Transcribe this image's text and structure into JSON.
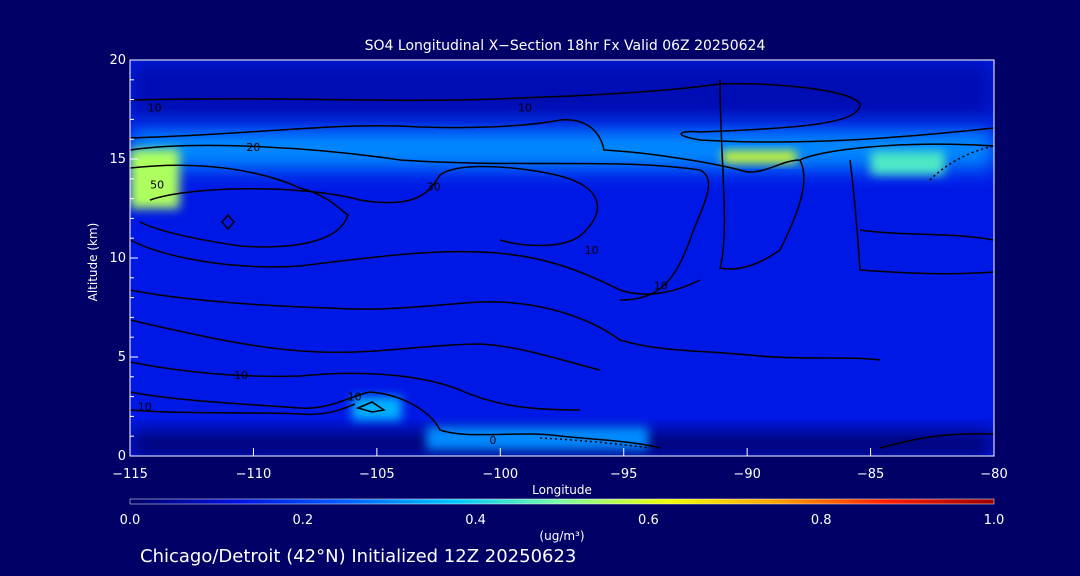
{
  "chart_data": {
    "type": "heatmap",
    "title": "SO4 Longitudinal X−Section 18hr  Fx Valid 06Z 20250624",
    "subtitle": "Chicago/Detroit (42°N) Initialized 12Z 20250623",
    "xlabel": "Longitude",
    "ylabel": "Altitude (km)",
    "xlim": [
      -115,
      -80
    ],
    "ylim": [
      0,
      20
    ],
    "x_ticks": [
      -115,
      -110,
      -105,
      -100,
      -95,
      -90,
      -85,
      -80
    ],
    "x_tick_labels": [
      "−115",
      "−110",
      "−105",
      "−100",
      "−95",
      "−90",
      "−85",
      "−80"
    ],
    "y_ticks": [
      0,
      5,
      10,
      15,
      20
    ],
    "y_tick_labels": [
      "0",
      "5",
      "10",
      "15",
      "20"
    ],
    "colorbar": {
      "min": 0.0,
      "max": 1.0,
      "ticks": [
        0.0,
        0.2,
        0.4,
        0.6,
        0.8,
        1.0
      ],
      "tick_labels": [
        "0.0",
        "0.2",
        "0.4",
        "0.6",
        "0.8",
        "1.0"
      ],
      "unit_label": "(ug/m³)",
      "colormap": [
        "#000066",
        "#0010e0",
        "#0060ff",
        "#00c8ff",
        "#80ffa0",
        "#f0ff00",
        "#ffa000",
        "#ff2000",
        "#990000"
      ]
    },
    "field_levels": [
      {
        "lon": [
          -115,
          -80
        ],
        "alt": [
          0,
          1.2
        ],
        "value": 0.0
      },
      {
        "lon": [
          -115,
          -80
        ],
        "alt": [
          17,
          20
        ],
        "value": 0.08
      },
      {
        "lon": [
          -115,
          -80
        ],
        "alt": [
          14.5,
          16.5
        ],
        "value": 0.3
      },
      {
        "lon": [
          -115,
          -113
        ],
        "alt": [
          12.5,
          15.5
        ],
        "value": 0.55
      },
      {
        "lon": [
          -91,
          -88
        ],
        "alt": [
          14.8,
          15.4
        ],
        "value": 0.6
      },
      {
        "lon": [
          -85,
          -82
        ],
        "alt": [
          14.2,
          15.4
        ],
        "value": 0.45
      },
      {
        "lon": [
          -106,
          -104
        ],
        "alt": [
          1.8,
          3.0
        ],
        "value": 0.35
      },
      {
        "lon": [
          -103,
          -94
        ],
        "alt": [
          0.3,
          1.5
        ],
        "value": 0.3
      }
    ],
    "contour_labels": [
      {
        "text": "10",
        "lon": -114,
        "alt": 17.6
      },
      {
        "text": "10",
        "lon": -99,
        "alt": 17.6
      },
      {
        "text": "20",
        "lon": -110,
        "alt": 15.6
      },
      {
        "text": "50",
        "lon": -113.9,
        "alt": 13.7
      },
      {
        "text": "30",
        "lon": -102.7,
        "alt": 13.6
      },
      {
        "text": "10",
        "lon": -96.3,
        "alt": 10.4
      },
      {
        "text": "10",
        "lon": -93.5,
        "alt": 8.6
      },
      {
        "text": "10",
        "lon": -110.5,
        "alt": 4.1
      },
      {
        "text": "10",
        "lon": -114.4,
        "alt": 2.5
      },
      {
        "text": "10",
        "lon": -105.9,
        "alt": 3.0
      },
      {
        "text": "0",
        "lon": -100.3,
        "alt": 0.8
      }
    ]
  }
}
